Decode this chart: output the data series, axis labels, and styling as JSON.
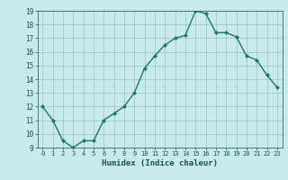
{
  "x": [
    0,
    1,
    2,
    3,
    4,
    5,
    6,
    7,
    8,
    9,
    10,
    11,
    12,
    13,
    14,
    15,
    16,
    17,
    18,
    19,
    20,
    21,
    22,
    23
  ],
  "y": [
    12,
    11,
    9.5,
    9,
    9.5,
    9.5,
    11,
    11.5,
    12,
    13,
    14.8,
    15.7,
    16.5,
    17,
    17.2,
    19,
    18.8,
    17.4,
    17.4,
    17.1,
    15.7,
    15.4,
    14.3,
    13.4
  ],
  "line_color": "#1a7a5e",
  "marker_color": "#1a7a5e",
  "bg_color": "#c8eaea",
  "grid_color": "#b0d8d8",
  "xlabel": "Humidex (Indice chaleur)",
  "xlim": [
    -0.5,
    23.5
  ],
  "ylim": [
    9,
    19
  ],
  "xticks": [
    0,
    1,
    2,
    3,
    4,
    5,
    6,
    7,
    8,
    9,
    10,
    11,
    12,
    13,
    14,
    15,
    16,
    17,
    18,
    19,
    20,
    21,
    22,
    23
  ],
  "yticks": [
    9,
    10,
    11,
    12,
    13,
    14,
    15,
    16,
    17,
    18,
    19
  ],
  "xtick_labels": [
    "0",
    "1",
    "2",
    "3",
    "4",
    "5",
    "6",
    "7",
    "8",
    "9",
    "10",
    "11",
    "12",
    "13",
    "14",
    "15",
    "16",
    "17",
    "18",
    "19",
    "20",
    "21",
    "22",
    "23"
  ],
  "ytick_labels": [
    "9",
    "10",
    "11",
    "12",
    "13",
    "14",
    "15",
    "16",
    "17",
    "18",
    "19"
  ]
}
